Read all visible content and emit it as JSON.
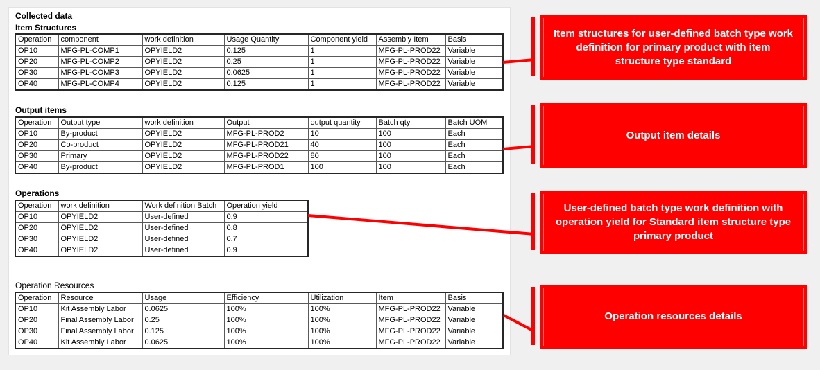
{
  "colors": {
    "accent": "#fe0000",
    "page_bg": "#f0f0f0",
    "panel_bg": "#ffffff",
    "callout_text": "#ffffff"
  },
  "document": {
    "title": "Collected data"
  },
  "tables": [
    {
      "label": "Item Structures",
      "columns": [
        "Operation",
        "component",
        "work definition",
        "Usage Quantity",
        "Component yield",
        "Assembly Item",
        "Basis"
      ],
      "rows": [
        [
          "OP10",
          "MFG-PL-COMP1",
          "OPYIELD2",
          "0.125",
          "1",
          "MFG-PL-PROD22",
          "Variable"
        ],
        [
          "OP20",
          "MFG-PL-COMP2",
          "OPYIELD2",
          "0.25",
          "1",
          "MFG-PL-PROD22",
          "Variable"
        ],
        [
          "OP30",
          "MFG-PL-COMP3",
          "OPYIELD2",
          "0.0625",
          "1",
          "MFG-PL-PROD22",
          "Variable"
        ],
        [
          "OP40",
          "MFG-PL-COMP4",
          "OPYIELD2",
          "0.125",
          "1",
          "MFG-PL-PROD22",
          "Variable"
        ]
      ]
    },
    {
      "label": "Output items",
      "columns": [
        "Operation",
        "Output type",
        "work definition",
        "Output",
        "output quantity",
        "Batch qty",
        "Batch UOM"
      ],
      "rows": [
        [
          "OP10",
          "By-product",
          "OPYIELD2",
          "MFG-PL-PROD2",
          "10",
          "100",
          "Each"
        ],
        [
          "OP20",
          "Co-product",
          "OPYIELD2",
          "MFG-PL-PROD21",
          "40",
          "100",
          "Each"
        ],
        [
          "OP30",
          "Primary",
          "OPYIELD2",
          "MFG-PL-PROD22",
          "80",
          "100",
          "Each"
        ],
        [
          "OP40",
          "By-product",
          "OPYIELD2",
          "MFG-PL-PROD1",
          "100",
          "100",
          "Each"
        ]
      ]
    },
    {
      "label": "Operations",
      "columns": [
        "Operation",
        "work definition",
        "Work definition Batch",
        "Operation yield"
      ],
      "rows": [
        [
          "OP10",
          "OPYIELD2",
          "User-defined",
          "0.9"
        ],
        [
          "OP20",
          "OPYIELD2",
          "User-defined",
          "0.8"
        ],
        [
          "OP30",
          "OPYIELD2",
          "User-defined",
          "0.7"
        ],
        [
          "OP40",
          "OPYIELD2",
          "User-defined",
          "0.9"
        ]
      ]
    },
    {
      "label": "Operation Resources",
      "columns": [
        "Operation",
        "Resource",
        "Usage",
        "Efficiency",
        "Utilization",
        "Item",
        "Basis"
      ],
      "rows": [
        [
          "OP10",
          "Kit Assembly Labor",
          "0.0625",
          "100%",
          "100%",
          "MFG-PL-PROD22",
          "Variable"
        ],
        [
          "OP20",
          "Final Assembly Labor",
          "0.25",
          "100%",
          "100%",
          "MFG-PL-PROD22",
          "Variable"
        ],
        [
          "OP30",
          "Final Assembly Labor",
          "0.125",
          "100%",
          "100%",
          "MFG-PL-PROD22",
          "Variable"
        ],
        [
          "OP40",
          "Kit Assembly Labor",
          "0.0625",
          "100%",
          "100%",
          "MFG-PL-PROD22",
          "Variable"
        ]
      ]
    }
  ],
  "callouts": [
    {
      "text": "Item structures for user-defined batch type work definition for primary product with item structure type standard"
    },
    {
      "text": "Output item details"
    },
    {
      "text": "User-defined batch type work definition with operation yield for Standard item structure type primary product"
    },
    {
      "text": "Operation resources details"
    }
  ]
}
